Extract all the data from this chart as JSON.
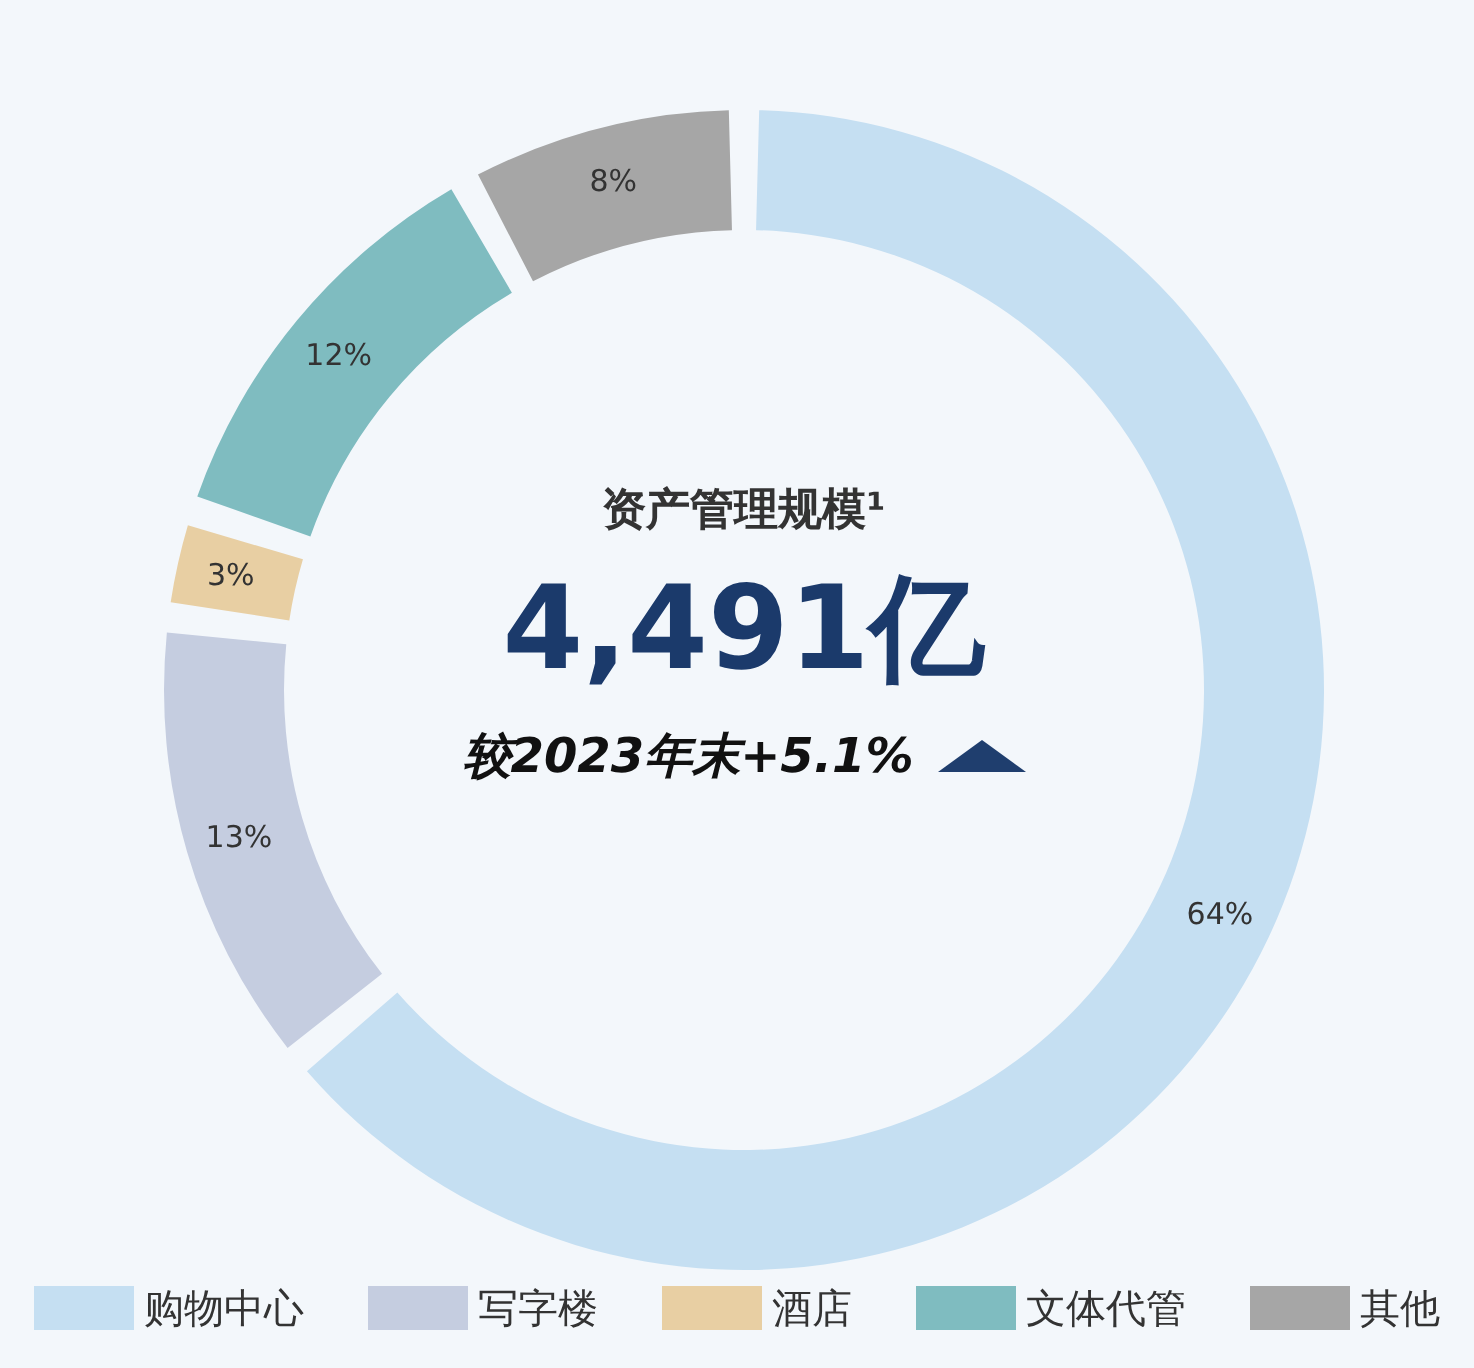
{
  "chart_data": {
    "type": "donut",
    "title": "资产管理规模¹",
    "subtitle": "4,491亿",
    "annotations": [
      "较2023年末+5.1%"
    ],
    "categories": [
      "购物中心",
      "写字楼",
      "酒店",
      "文体代管",
      "其他"
    ],
    "values": [
      64,
      13,
      3,
      12,
      8
    ],
    "colors": [
      "#c5dff2",
      "#c5cde0",
      "#e8cfa3",
      "#7fbcc0",
      "#a6a6a6"
    ],
    "value_labels": [
      "64%",
      "13%",
      "3%",
      "12%",
      "8%"
    ],
    "legend": "bottom"
  }
}
